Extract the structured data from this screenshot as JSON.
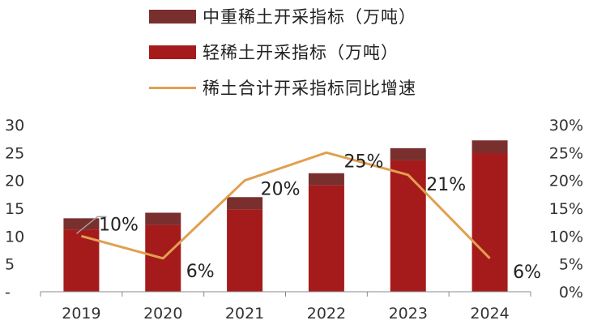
{
  "legend": [
    {
      "label": "中重稀土开采指标（万吨）",
      "color": "#7a2f2f",
      "kind": "bar"
    },
    {
      "label": "轻稀土开采指标（万吨）",
      "color": "#a51b1b",
      "kind": "bar"
    },
    {
      "label": "稀土合计开采指标同比增速",
      "color": "#e0a050",
      "kind": "line"
    }
  ],
  "chart_data": {
    "type": "bar",
    "subtype": "stacked bar with line on secondary axis",
    "categories": [
      "2019",
      "2020",
      "2021",
      "2022",
      "2023",
      "2024"
    ],
    "series": [
      {
        "name": "轻稀土开采指标（万吨）",
        "type": "bar",
        "axis": "left",
        "color": "#a51b1b",
        "values": [
          11.2,
          12.0,
          14.8,
          19.1,
          23.6,
          24.9
        ]
      },
      {
        "name": "中重稀土开采指标（万吨）",
        "type": "bar",
        "axis": "left",
        "color": "#7a2f2f",
        "values": [
          2.0,
          2.2,
          2.2,
          2.2,
          2.2,
          2.3
        ]
      },
      {
        "name": "稀土合计开采指标同比增速",
        "type": "line",
        "axis": "right",
        "color": "#e0a050",
        "values": [
          10,
          6,
          20,
          25,
          21,
          6
        ],
        "labels": [
          "10%",
          "6%",
          "20%",
          "25%",
          "21%",
          "6%"
        ]
      }
    ],
    "y_left": {
      "ticks": [
        "-",
        "5",
        "10",
        "15",
        "20",
        "25",
        "30"
      ],
      "range": [
        0,
        30
      ]
    },
    "y_right": {
      "ticks": [
        "0%",
        "5%",
        "10%",
        "15%",
        "20%",
        "25%",
        "30%"
      ],
      "range": [
        0,
        30
      ]
    },
    "legend_position": "top",
    "grid": false
  }
}
